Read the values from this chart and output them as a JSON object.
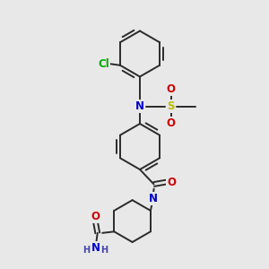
{
  "background_color": "#e8e8e8",
  "bond_color": "#2a2a2a",
  "line_width": 1.4,
  "atom_colors": {
    "C": "#1a1a1a",
    "N": "#0000cc",
    "O": "#cc0000",
    "S": "#bbbb00",
    "Cl": "#00aa00",
    "H": "#4444aa"
  },
  "font_size": 8.5
}
